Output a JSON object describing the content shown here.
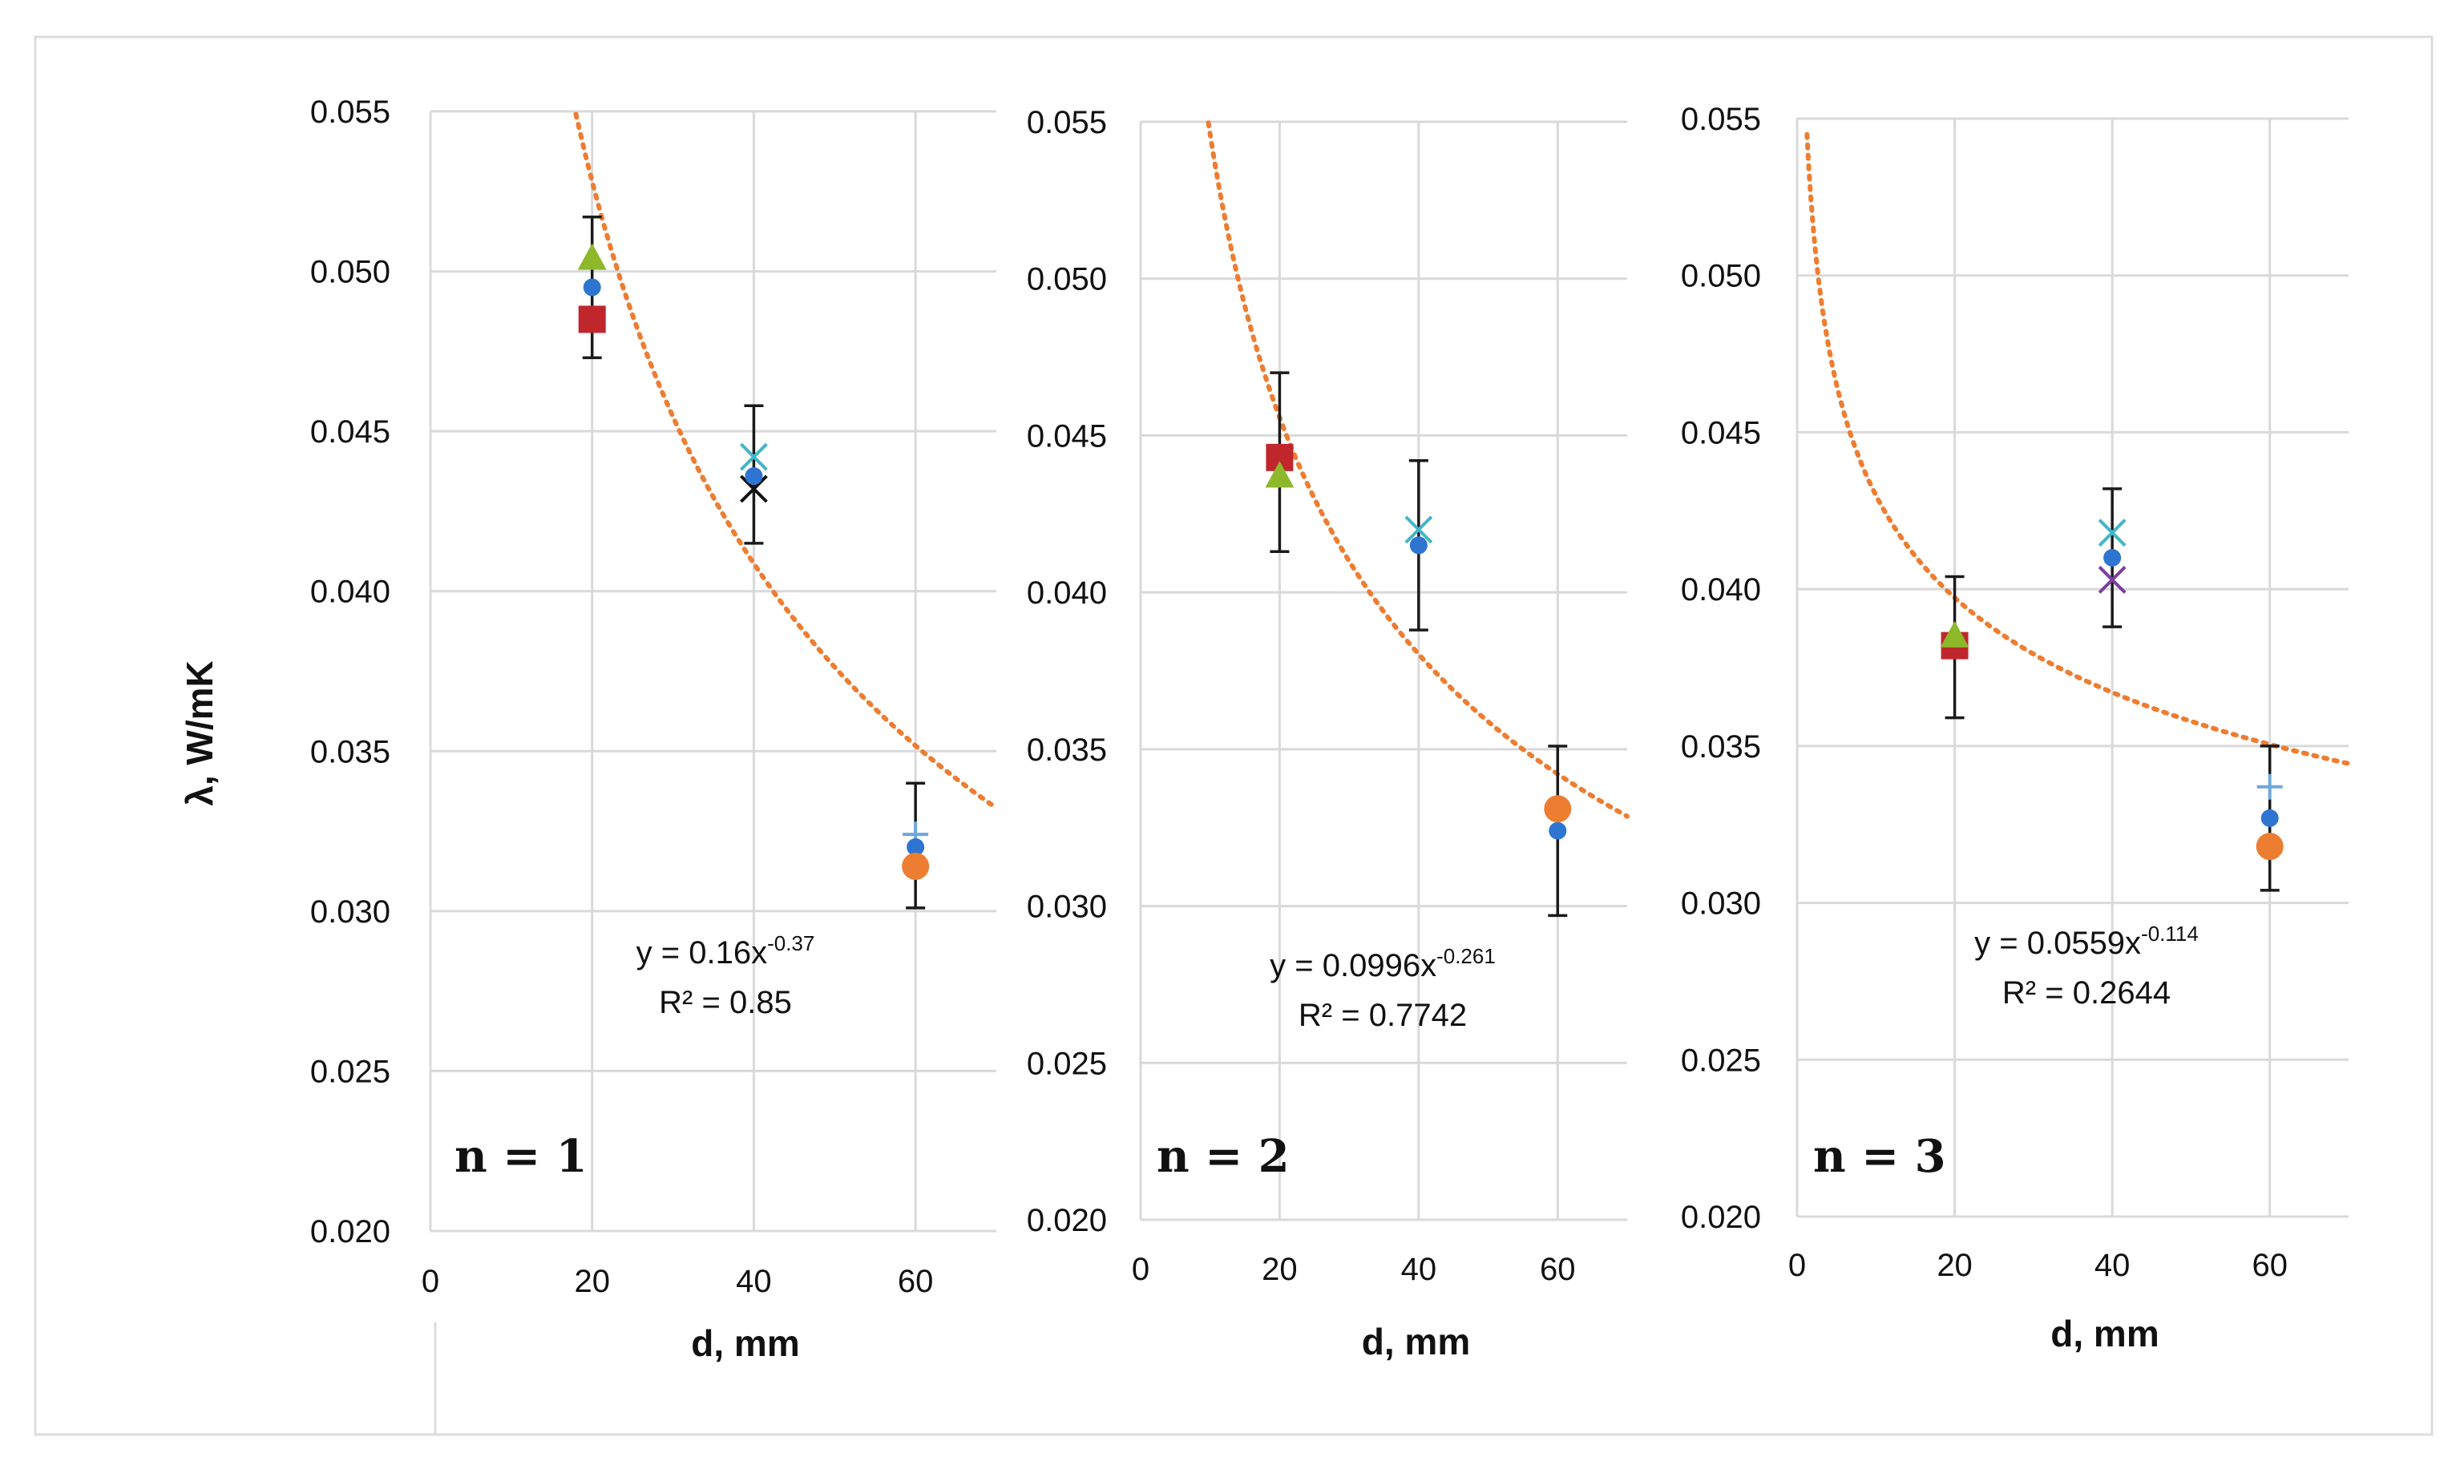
{
  "figure": {
    "ylabel": "λ, W/mK",
    "colors": {
      "trendline": "#ed7d31",
      "square": "#c0272d",
      "triangle": "#8cb82a",
      "dot": "#2e75d2",
      "circle": "#ed7d31",
      "xmark_cyan": "#43b5c8",
      "xmark_purple": "#7b3fa0",
      "xmark_black": "#111111",
      "plus": "#6fa8dc",
      "errbar": "#1a1a1a",
      "grid": "#d9d9d9"
    }
  },
  "chart_data": [
    {
      "type": "scatter",
      "panel_label": "n = 1",
      "xlabel": "d, mm",
      "ylabel": "λ, W/mK",
      "xlim": [
        0,
        70
      ],
      "ylim": [
        0.02,
        0.055
      ],
      "xticks": [
        "0",
        "20",
        "40",
        "60"
      ],
      "yticks": [
        "0.020",
        "0.025",
        "0.030",
        "0.035",
        "0.040",
        "0.045",
        "0.050",
        "0.055"
      ],
      "grid": "horizontal",
      "trendline": {
        "a": 0.16,
        "b": -0.37,
        "equation_prefix": "y = 0.16x",
        "equation_exponent": "-0.37",
        "r2_text": "R² = 0.85"
      },
      "errorbars": [
        {
          "x": 20,
          "low": 0.0473,
          "high": 0.0517
        },
        {
          "x": 40,
          "low": 0.0415,
          "high": 0.0458
        },
        {
          "x": 60,
          "low": 0.0301,
          "high": 0.034
        }
      ],
      "points": [
        {
          "x": 20,
          "y": 0.0504,
          "marker": "triangle"
        },
        {
          "x": 20,
          "y": 0.0495,
          "marker": "dot"
        },
        {
          "x": 20,
          "y": 0.0485,
          "marker": "square"
        },
        {
          "x": 40,
          "y": 0.0442,
          "marker": "xmark_cyan"
        },
        {
          "x": 40,
          "y": 0.0432,
          "marker": "xmark_black"
        },
        {
          "x": 40,
          "y": 0.0436,
          "marker": "dot"
        },
        {
          "x": 60,
          "y": 0.0324,
          "marker": "plus"
        },
        {
          "x": 60,
          "y": 0.032,
          "marker": "dot"
        },
        {
          "x": 60,
          "y": 0.0314,
          "marker": "circle"
        }
      ]
    },
    {
      "type": "scatter",
      "panel_label": "n = 2",
      "xlabel": "d, mm",
      "ylabel": "",
      "xlim": [
        0,
        70
      ],
      "ylim": [
        0.02,
        0.055
      ],
      "xticks": [
        "0",
        "20",
        "40",
        "60"
      ],
      "yticks": [
        "0.020",
        "0.025",
        "0.030",
        "0.035",
        "0.040",
        "0.045",
        "0.050",
        "0.055"
      ],
      "grid": "horizontal",
      "trendline": {
        "a": 0.0996,
        "b": -0.261,
        "equation_prefix": "y = 0.0996x",
        "equation_exponent": "-0.261",
        "r2_text": "R² = 0.7742"
      },
      "errorbars": [
        {
          "x": 20,
          "low": 0.0413,
          "high": 0.047
        },
        {
          "x": 40,
          "low": 0.0388,
          "high": 0.0442
        },
        {
          "x": 60,
          "low": 0.0297,
          "high": 0.0351
        }
      ],
      "points": [
        {
          "x": 20,
          "y": 0.0443,
          "marker": "square"
        },
        {
          "x": 20,
          "y": 0.0437,
          "marker": "triangle"
        },
        {
          "x": 40,
          "y": 0.042,
          "marker": "xmark_cyan"
        },
        {
          "x": 40,
          "y": 0.0415,
          "marker": "dot"
        },
        {
          "x": 60,
          "y": 0.0324,
          "marker": "dot"
        },
        {
          "x": 60,
          "y": 0.0331,
          "marker": "circle"
        }
      ]
    },
    {
      "type": "scatter",
      "panel_label": "n = 3",
      "xlabel": "d, mm",
      "ylabel": "",
      "xlim": [
        0,
        70
      ],
      "ylim": [
        0.02,
        0.055
      ],
      "xticks": [
        "0",
        "20",
        "40",
        "60"
      ],
      "yticks": [
        "0.020",
        "0.025",
        "0.030",
        "0.035",
        "0.040",
        "0.045",
        "0.050",
        "0.055"
      ],
      "grid": "horizontal",
      "trendline": {
        "a": 0.0559,
        "b": -0.114,
        "equation_prefix": "y = 0.0559x",
        "equation_exponent": "-0.114",
        "r2_text": "R² = 0.2644"
      },
      "errorbars": [
        {
          "x": 20,
          "low": 0.0359,
          "high": 0.0404
        },
        {
          "x": 40,
          "low": 0.0388,
          "high": 0.0432
        },
        {
          "x": 60,
          "low": 0.0304,
          "high": 0.035
        }
      ],
      "points": [
        {
          "x": 20,
          "y": 0.0382,
          "marker": "square"
        },
        {
          "x": 20,
          "y": 0.0385,
          "marker": "triangle"
        },
        {
          "x": 40,
          "y": 0.0418,
          "marker": "xmark_cyan"
        },
        {
          "x": 40,
          "y": 0.0403,
          "marker": "xmark_purple"
        },
        {
          "x": 40,
          "y": 0.041,
          "marker": "dot"
        },
        {
          "x": 60,
          "y": 0.0337,
          "marker": "plus"
        },
        {
          "x": 60,
          "y": 0.0327,
          "marker": "dot"
        },
        {
          "x": 60,
          "y": 0.0318,
          "marker": "circle"
        }
      ]
    }
  ]
}
